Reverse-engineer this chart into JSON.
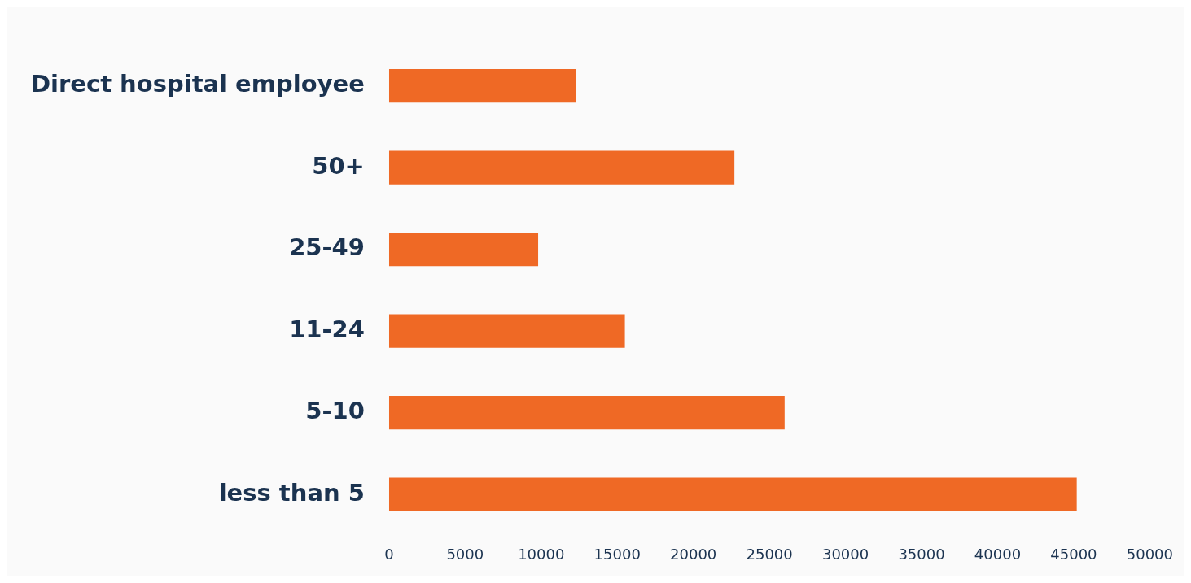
{
  "chart_data": {
    "type": "bar",
    "orientation": "horizontal",
    "categories": [
      "Direct hospital employee",
      "50+",
      "25-49",
      "11-24",
      "5-10",
      "less than 5"
    ],
    "values": [
      12300,
      22700,
      9800,
      15500,
      26000,
      45200
    ],
    "color": "#ef6925",
    "xlim": [
      0,
      50000
    ],
    "xticks": [
      0,
      5000,
      10000,
      15000,
      20000,
      25000,
      30000,
      35000,
      40000,
      45000,
      50000
    ],
    "grid": false,
    "legend": false
  }
}
